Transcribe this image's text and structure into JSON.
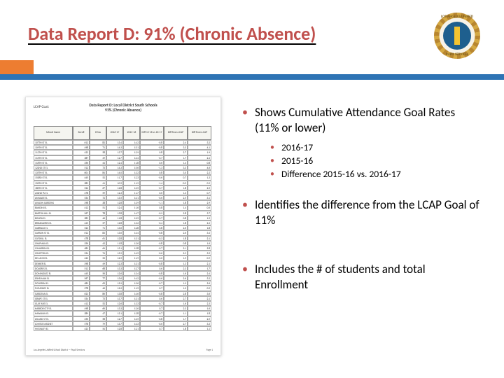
{
  "title": "Data Report D: 91% (Chronic Absence)",
  "logo": {
    "outer_text_top": "LOS ANGELES UNIFIED",
    "outer_text_bottom": "PUPIL SERVICES",
    "rim_color": "#d4a843",
    "inner_color": "#1e5f8e",
    "pencil_color": "#f4c430"
  },
  "bars": {
    "orange": "#ed7d31",
    "blue": "#2e74b5"
  },
  "title_color": "#c0504d",
  "bullets": {
    "main": [
      {
        "text": "Shows Cumulative Attendance Goal Rates (11% or lower)",
        "sub": [
          "2016-17",
          "2015-16",
          "Difference 2015-16 vs. 2016-17"
        ]
      },
      {
        "text": "Identifies the difference from the LCAP Goal of 11%"
      },
      {
        "text": "Includes the # of students and total Enrollment"
      }
    ],
    "bullet_color": "#c0504d"
  },
  "doc": {
    "lcap_label": "LCAP Goal:",
    "title_line1": "Data Report D: Local District South Schools",
    "title_line2": "91% (Chronic Absence)",
    "footer_left": "Los Angeles Unified School District — Pupil Services",
    "footer_right": "Page 1",
    "headers": [
      "School Name",
      "Enroll",
      "# Stu",
      "2016-17",
      "2015-16",
      "Diff 15-16 vs 16-17",
      "Diff from LCAP",
      "Diff from LCAP"
    ],
    "rows": [
      [
        "107TH ST EL",
        "612",
        "82",
        "13.4",
        "14.2",
        "-0.8",
        "2.4",
        "3.2"
      ],
      [
        "109TH ST EL",
        "498",
        "71",
        "14.3",
        "15.1",
        "-0.8",
        "3.3",
        "4.1"
      ],
      [
        "112TH ST EL",
        "423",
        "58",
        "13.7",
        "12.9",
        "0.8",
        "2.7",
        "1.9"
      ],
      [
        "116TH ST EL",
        "387",
        "49",
        "12.7",
        "13.4",
        "-0.7",
        "1.7",
        "2.4"
      ],
      [
        "118TH ST EL",
        "356",
        "44",
        "12.4",
        "11.8",
        "0.6",
        "1.4",
        "0.8"
      ],
      [
        "122ND ST EL",
        "512",
        "73",
        "14.3",
        "15.6",
        "-1.3",
        "3.3",
        "4.6"
      ],
      [
        "135TH ST EL",
        "601",
        "84",
        "14.0",
        "13.2",
        "0.8",
        "3.0",
        "2.2"
      ],
      [
        "153RD ST EL",
        "445",
        "52",
        "11.7",
        "12.3",
        "-0.6",
        "0.7",
        "1.3"
      ],
      [
        "156TH ST EL",
        "389",
        "41",
        "10.5",
        "11.9",
        "-1.4",
        "-0.5",
        "0.9"
      ],
      [
        "186TH ST EL",
        "522",
        "67",
        "12.8",
        "13.5",
        "-0.7",
        "1.8",
        "2.5"
      ],
      [
        "232ND PL EL",
        "478",
        "59",
        "12.3",
        "11.7",
        "0.6",
        "1.3",
        "0.7"
      ],
      [
        "ANNALEE EL",
        "534",
        "72",
        "13.5",
        "14.1",
        "-0.6",
        "2.5",
        "3.1"
      ],
      [
        "AVALON GARDENS",
        "298",
        "38",
        "12.8",
        "13.9",
        "-1.1",
        "1.8",
        "2.9"
      ],
      [
        "BANDINI EL",
        "412",
        "51",
        "12.4",
        "11.6",
        "0.8",
        "1.4",
        "0.6"
      ],
      [
        "BARTON HILL EL",
        "567",
        "78",
        "13.8",
        "14.7",
        "-0.9",
        "2.8",
        "3.7"
      ],
      [
        "BONITA EL",
        "389",
        "46",
        "11.8",
        "12.5",
        "-0.7",
        "0.8",
        "1.5"
      ],
      [
        "BROADACRES EL",
        "445",
        "57",
        "12.8",
        "13.2",
        "-0.4",
        "1.8",
        "2.2"
      ],
      [
        "CABRILLO EL",
        "523",
        "71",
        "13.6",
        "12.8",
        "0.8",
        "2.6",
        "1.8"
      ],
      [
        "CARSON ST EL",
        "612",
        "83",
        "13.6",
        "14.4",
        "-0.8",
        "2.6",
        "3.4"
      ],
      [
        "CATSKILL EL",
        "478",
        "61",
        "12.8",
        "13.1",
        "-0.3",
        "1.8",
        "2.1"
      ],
      [
        "CHAPMAN EL",
        "356",
        "42",
        "11.8",
        "12.6",
        "-0.8",
        "0.8",
        "1.6"
      ],
      [
        "CIMARRON EL",
        "489",
        "64",
        "13.1",
        "13.8",
        "-0.7",
        "2.1",
        "2.8"
      ],
      [
        "COMPTON EL",
        "534",
        "74",
        "13.9",
        "14.5",
        "-0.6",
        "2.9",
        "3.5"
      ],
      [
        "DEL AMO EL",
        "423",
        "53",
        "12.5",
        "11.9",
        "0.6",
        "1.5",
        "0.9"
      ],
      [
        "DENKER EL",
        "398",
        "49",
        "12.3",
        "13.1",
        "-0.8",
        "1.3",
        "2.1"
      ],
      [
        "DOLORES EL",
        "512",
        "68",
        "13.3",
        "12.7",
        "0.6",
        "2.3",
        "1.7"
      ],
      [
        "DOMINGUEZ EL",
        "445",
        "56",
        "12.6",
        "13.4",
        "-0.8",
        "1.6",
        "2.4"
      ],
      [
        "ESHELMAN EL",
        "567",
        "77",
        "13.6",
        "14.2",
        "-0.6",
        "2.6",
        "3.2"
      ],
      [
        "FIGUEROA EL",
        "489",
        "63",
        "12.9",
        "13.6",
        "-0.7",
        "1.9",
        "2.6"
      ],
      [
        "FLOURNOY EL",
        "378",
        "46",
        "12.2",
        "11.5",
        "0.7",
        "1.2",
        "0.5"
      ],
      [
        "GARDENA EL",
        "623",
        "86",
        "13.8",
        "14.6",
        "-0.8",
        "2.8",
        "3.6"
      ],
      [
        "GRAPE ST EL",
        "534",
        "73",
        "13.7",
        "13.1",
        "0.6",
        "2.7",
        "2.1"
      ],
      [
        "GULF AVE EL",
        "412",
        "52",
        "12.6",
        "13.3",
        "-0.7",
        "1.6",
        "2.3"
      ],
      [
        "HARBOR CITY EL",
        "498",
        "66",
        "13.3",
        "12.6",
        "0.7",
        "2.3",
        "1.6"
      ],
      [
        "HAWAIIAN EL",
        "389",
        "47",
        "12.1",
        "12.8",
        "-0.7",
        "1.1",
        "1.8"
      ],
      [
        "LELAND ST EL",
        "456",
        "58",
        "12.7",
        "13.5",
        "-0.8",
        "1.7",
        "2.5"
      ],
      [
        "LOMITA MAGNET",
        "578",
        "79",
        "13.7",
        "14.3",
        "-0.6",
        "2.7",
        "3.3"
      ],
      [
        "MCKINLEY EL",
        "423",
        "54",
        "12.8",
        "12.1",
        "0.7",
        "1.8",
        "1.1"
      ]
    ]
  }
}
